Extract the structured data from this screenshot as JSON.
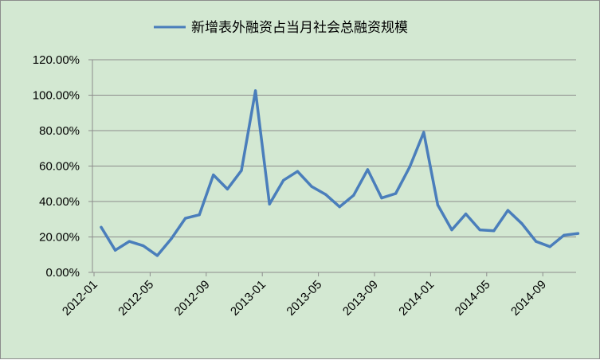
{
  "chart_data": {
    "type": "line",
    "title": "",
    "xlabel": "",
    "ylabel": "",
    "ylim": [
      0,
      120
    ],
    "y_tick_values": [
      0,
      20,
      40,
      60,
      80,
      100,
      120
    ],
    "y_tick_labels": [
      "0.00%",
      "20.00%",
      "40.00%",
      "60.00%",
      "80.00%",
      "100.00%",
      "120.00%"
    ],
    "x_tick_labels": [
      "2012-01",
      "2012-05",
      "2012-09",
      "2013-01",
      "2013-05",
      "2013-09",
      "2014-01",
      "2014-05",
      "2014-09"
    ],
    "x_tick_positions": [
      "2012-01",
      "2012-05",
      "2012-09",
      "2013-01",
      "2013-05",
      "2013-09",
      "2014-01",
      "2014-05",
      "2014-09"
    ],
    "grid": true,
    "legend_position": "top",
    "x": [
      "2012-01",
      "2012-02",
      "2012-03",
      "2012-04",
      "2012-05",
      "2012-06",
      "2012-07",
      "2012-08",
      "2012-09",
      "2012-10",
      "2012-11",
      "2012-12",
      "2013-01",
      "2013-02",
      "2013-03",
      "2013-04",
      "2013-05",
      "2013-06",
      "2013-07",
      "2013-08",
      "2013-09",
      "2013-10",
      "2013-11",
      "2013-12",
      "2014-01",
      "2014-02",
      "2014-03",
      "2014-04",
      "2014-05",
      "2014-06",
      "2014-07",
      "2014-08",
      "2014-09",
      "2014-10",
      "2014-11"
    ],
    "series": [
      {
        "name": "新增表外融资占当月社会总融资规模",
        "color": "#4a7ebb",
        "values": [
          25.5,
          12.5,
          17.5,
          15.0,
          9.5,
          19.0,
          30.5,
          32.5,
          55.0,
          47.0,
          57.5,
          102.5,
          38.5,
          52.0,
          57.0,
          48.5,
          44.0,
          37.0,
          43.5,
          58.0,
          42.0,
          44.5,
          59.5,
          79.0,
          38.0,
          24.0,
          33.0,
          24.0,
          23.5,
          35.0,
          27.5,
          17.5,
          14.5,
          21.0,
          22.0
        ]
      }
    ]
  }
}
